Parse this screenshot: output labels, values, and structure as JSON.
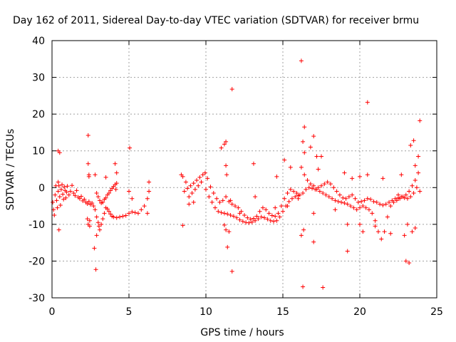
{
  "chart_data": {
    "type": "scatter",
    "title": "Day 162 of 2011, Sidereal Day-to-day VTEC variation (SDTVAR) for receiver brmu",
    "xlabel": "GPS time / hours",
    "ylabel": "SDTVAR / TECUs",
    "xlim": [
      0,
      25
    ],
    "ylim": [
      -30,
      40
    ],
    "xticks": [
      0,
      5,
      10,
      15,
      20,
      25
    ],
    "yticks": [
      -30,
      -20,
      -10,
      0,
      10,
      20,
      30,
      40
    ],
    "grid": true,
    "marker": "+",
    "color": "#ff0000",
    "series": [
      {
        "name": "SDTVAR",
        "points": [
          [
            0.05,
            -4.0
          ],
          [
            0.1,
            -6.0
          ],
          [
            0.15,
            -7.5
          ],
          [
            0.2,
            -2.0
          ],
          [
            0.25,
            0.5
          ],
          [
            0.3,
            -3.5
          ],
          [
            0.35,
            -5.5
          ],
          [
            0.4,
            -1.0
          ],
          [
            0.45,
            0.5
          ],
          [
            0.5,
            -2.5
          ],
          [
            0.55,
            -4.8
          ],
          [
            0.6,
            -0.5
          ],
          [
            0.65,
            0.8
          ],
          [
            0.7,
            -1.8
          ],
          [
            0.75,
            -3.2
          ],
          [
            0.8,
            0.2
          ],
          [
            0.85,
            -0.8
          ],
          [
            0.9,
            -2.8
          ],
          [
            0.95,
            -1.2
          ],
          [
            1.0,
            0.4
          ],
          [
            1.1,
            -2.0
          ],
          [
            1.2,
            -1.0
          ],
          [
            1.3,
            0.6
          ],
          [
            1.4,
            -1.5
          ],
          [
            1.5,
            -2.2
          ],
          [
            1.6,
            -0.8
          ],
          [
            1.7,
            -2.6
          ],
          [
            1.8,
            -3.0
          ],
          [
            1.9,
            -2.4
          ],
          [
            2.0,
            -3.6
          ],
          [
            2.1,
            -3.2
          ],
          [
            2.2,
            -4.0
          ],
          [
            2.3,
            -4.4
          ],
          [
            2.4,
            -3.8
          ],
          [
            2.5,
            -4.6
          ],
          [
            2.6,
            -4.2
          ],
          [
            2.7,
            -5.0
          ],
          [
            2.8,
            -6.0
          ],
          [
            2.9,
            -8.0
          ],
          [
            3.0,
            -9.5
          ],
          [
            3.05,
            -10.5
          ],
          [
            3.1,
            -11.5
          ],
          [
            3.2,
            -10.0
          ],
          [
            3.3,
            -8.5
          ],
          [
            3.4,
            -7.0
          ],
          [
            3.5,
            -5.5
          ],
          [
            3.6,
            -5.8
          ],
          [
            3.7,
            -6.5
          ],
          [
            3.8,
            -7.2
          ],
          [
            3.9,
            -7.8
          ],
          [
            4.0,
            -8.0
          ],
          [
            4.2,
            -8.2
          ],
          [
            4.4,
            -8.0
          ],
          [
            4.6,
            -7.8
          ],
          [
            4.8,
            -7.6
          ],
          [
            5.0,
            -7.0
          ],
          [
            5.2,
            -6.6
          ],
          [
            5.4,
            -6.8
          ],
          [
            5.6,
            -7.0
          ],
          [
            5.8,
            -6.0
          ],
          [
            6.0,
            -5.0
          ],
          [
            6.2,
            -3.0
          ],
          [
            6.3,
            -1.0
          ],
          [
            2.9,
            -1.5
          ],
          [
            3.0,
            -2.5
          ],
          [
            3.1,
            -3.5
          ],
          [
            3.2,
            -4.2
          ],
          [
            3.3,
            -4.0
          ],
          [
            3.4,
            -3.2
          ],
          [
            3.5,
            -2.8
          ],
          [
            3.6,
            -2.0
          ],
          [
            3.7,
            -1.5
          ],
          [
            3.8,
            -0.8
          ],
          [
            3.9,
            -0.2
          ],
          [
            4.0,
            0.3
          ],
          [
            4.1,
            0.8
          ],
          [
            4.2,
            1.2
          ],
          [
            0.4,
            10.0
          ],
          [
            0.5,
            9.5
          ],
          [
            0.45,
            -11.5
          ],
          [
            0.4,
            1.5
          ],
          [
            2.35,
            14.2
          ],
          [
            2.35,
            6.5
          ],
          [
            2.4,
            3.5
          ],
          [
            2.4,
            3.0
          ],
          [
            2.45,
            -9.0
          ],
          [
            2.45,
            -10.5
          ],
          [
            2.3,
            -8.5
          ],
          [
            2.35,
            -10.0
          ],
          [
            2.75,
            -16.5
          ],
          [
            2.85,
            -22.3
          ],
          [
            2.8,
            3.5
          ],
          [
            2.9,
            -13.0
          ],
          [
            3.5,
            2.8
          ],
          [
            4.1,
            6.5
          ],
          [
            4.15,
            -0.5
          ],
          [
            4.2,
            4.0
          ],
          [
            5.05,
            10.8
          ],
          [
            5.0,
            -1.0
          ],
          [
            5.2,
            -3.0
          ],
          [
            6.2,
            -7.0
          ],
          [
            6.3,
            1.5
          ],
          [
            8.4,
            3.5
          ],
          [
            8.5,
            -10.3
          ],
          [
            8.6,
            -1.0
          ],
          [
            8.8,
            -0.2
          ],
          [
            9.0,
            0.5
          ],
          [
            9.2,
            1.2
          ],
          [
            9.4,
            2.0
          ],
          [
            9.6,
            2.8
          ],
          [
            9.8,
            3.5
          ],
          [
            9.95,
            4.0
          ],
          [
            10.1,
            2.5
          ],
          [
            10.3,
            0.2
          ],
          [
            10.5,
            -1.5
          ],
          [
            10.7,
            -3.0
          ],
          [
            10.9,
            -4.0
          ],
          [
            11.1,
            -3.5
          ],
          [
            11.3,
            -2.5
          ],
          [
            11.5,
            -3.8
          ],
          [
            11.7,
            -4.5
          ],
          [
            11.9,
            -5.0
          ],
          [
            12.1,
            -5.5
          ],
          [
            12.3,
            -6.5
          ],
          [
            12.5,
            -7.5
          ],
          [
            12.7,
            -8.2
          ],
          [
            12.9,
            -8.6
          ],
          [
            13.1,
            -8.4
          ],
          [
            13.3,
            -7.8
          ],
          [
            13.5,
            -6.5
          ],
          [
            13.7,
            -5.5
          ],
          [
            13.9,
            -6.0
          ],
          [
            14.1,
            -7.0
          ],
          [
            14.3,
            -7.6
          ],
          [
            14.5,
            -7.8
          ],
          [
            14.7,
            -7.0
          ],
          [
            14.9,
            -5.0
          ],
          [
            15.1,
            -3.0
          ],
          [
            15.3,
            -1.5
          ],
          [
            15.5,
            -0.5
          ],
          [
            15.7,
            -1.0
          ],
          [
            15.9,
            -1.5
          ],
          [
            16.1,
            -2.0
          ],
          [
            8.5,
            3.0
          ],
          [
            8.7,
            1.5
          ],
          [
            9.1,
            -1.5
          ],
          [
            9.3,
            -0.5
          ],
          [
            9.5,
            0.5
          ],
          [
            9.7,
            1.5
          ],
          [
            10.0,
            -0.5
          ],
          [
            10.2,
            -2.5
          ],
          [
            10.4,
            -4.0
          ],
          [
            10.6,
            -5.5
          ],
          [
            10.8,
            -6.5
          ],
          [
            11.0,
            -6.8
          ],
          [
            11.2,
            -7.0
          ],
          [
            11.4,
            -7.2
          ],
          [
            11.6,
            -7.5
          ],
          [
            11.8,
            -7.8
          ],
          [
            12.0,
            -8.2
          ],
          [
            12.2,
            -8.8
          ],
          [
            12.4,
            -9.2
          ],
          [
            12.6,
            -9.5
          ],
          [
            12.8,
            -9.6
          ],
          [
            13.0,
            -9.4
          ],
          [
            13.2,
            -9.0
          ],
          [
            13.4,
            -8.5
          ],
          [
            13.6,
            -8.0
          ],
          [
            13.8,
            -8.2
          ],
          [
            14.0,
            -8.6
          ],
          [
            14.2,
            -9.0
          ],
          [
            14.4,
            -9.2
          ],
          [
            14.6,
            -9.0
          ],
          [
            14.8,
            -8.0
          ],
          [
            15.0,
            -6.5
          ],
          [
            15.2,
            -5.0
          ],
          [
            15.4,
            -3.8
          ],
          [
            15.6,
            -3.0
          ],
          [
            15.8,
            -2.5
          ],
          [
            16.0,
            -2.2
          ],
          [
            8.9,
            -2.5
          ],
          [
            8.9,
            -4.5
          ],
          [
            9.2,
            -4.0
          ],
          [
            11.0,
            10.8
          ],
          [
            11.2,
            11.8
          ],
          [
            11.3,
            6.0
          ],
          [
            11.35,
            3.5
          ],
          [
            11.2,
            -10.2
          ],
          [
            11.3,
            -11.5
          ],
          [
            11.4,
            -16.2
          ],
          [
            11.5,
            -12.0
          ],
          [
            11.7,
            26.8
          ],
          [
            11.7,
            -22.8
          ],
          [
            11.6,
            -3.5
          ],
          [
            11.3,
            12.5
          ],
          [
            12.2,
            -7.0
          ],
          [
            13.1,
            6.5
          ],
          [
            13.2,
            -2.5
          ],
          [
            14.5,
            -5.5
          ],
          [
            14.6,
            3.0
          ],
          [
            15.1,
            7.5
          ],
          [
            15.3,
            -5.0
          ],
          [
            15.5,
            5.5
          ],
          [
            16.2,
            5.5
          ],
          [
            16.4,
            3.5
          ],
          [
            16.6,
            2.0
          ],
          [
            16.8,
            1.0
          ],
          [
            17.0,
            0.5
          ],
          [
            17.2,
            -0.5
          ],
          [
            17.4,
            -1.0
          ],
          [
            17.6,
            -1.5
          ],
          [
            17.8,
            -2.0
          ],
          [
            18.0,
            -2.5
          ],
          [
            18.2,
            -3.0
          ],
          [
            18.4,
            -3.5
          ],
          [
            18.6,
            -3.8
          ],
          [
            18.8,
            -4.0
          ],
          [
            19.0,
            -4.2
          ],
          [
            19.2,
            -4.5
          ],
          [
            19.4,
            -5.0
          ],
          [
            19.6,
            -5.5
          ],
          [
            19.8,
            -6.0
          ],
          [
            20.0,
            -5.5
          ],
          [
            20.2,
            -5.0
          ],
          [
            20.4,
            -5.5
          ],
          [
            20.6,
            -6.0
          ],
          [
            20.8,
            -7.0
          ],
          [
            21.0,
            -9.0
          ],
          [
            21.2,
            -12.0
          ],
          [
            21.4,
            -14.0
          ],
          [
            21.6,
            -12.0
          ],
          [
            21.8,
            -8.0
          ],
          [
            22.0,
            -5.0
          ],
          [
            22.2,
            -4.0
          ],
          [
            22.4,
            -3.5
          ],
          [
            22.6,
            -3.0
          ],
          [
            22.8,
            -2.5
          ],
          [
            23.0,
            -2.0
          ],
          [
            23.2,
            -1.0
          ],
          [
            23.4,
            0.5
          ],
          [
            23.6,
            2.0
          ],
          [
            23.8,
            4.0
          ],
          [
            16.0,
            -3.0
          ],
          [
            16.3,
            -1.5
          ],
          [
            16.5,
            -0.5
          ],
          [
            16.7,
            0.0
          ],
          [
            16.9,
            -0.2
          ],
          [
            17.1,
            -0.5
          ],
          [
            17.3,
            0.0
          ],
          [
            17.5,
            0.5
          ],
          [
            17.7,
            1.0
          ],
          [
            17.9,
            1.5
          ],
          [
            18.1,
            1.0
          ],
          [
            18.3,
            0.0
          ],
          [
            18.5,
            -1.0
          ],
          [
            18.7,
            -2.0
          ],
          [
            18.9,
            -2.8
          ],
          [
            19.1,
            -3.0
          ],
          [
            19.3,
            -2.5
          ],
          [
            19.5,
            -2.0
          ],
          [
            19.7,
            -3.0
          ],
          [
            19.9,
            -4.0
          ],
          [
            20.1,
            -3.8
          ],
          [
            20.3,
            -3.5
          ],
          [
            20.5,
            -3.0
          ],
          [
            20.7,
            -3.2
          ],
          [
            20.9,
            -3.8
          ],
          [
            21.1,
            -4.0
          ],
          [
            21.3,
            -4.5
          ],
          [
            21.5,
            -4.8
          ],
          [
            21.7,
            -4.5
          ],
          [
            21.9,
            -4.0
          ],
          [
            22.1,
            -3.5
          ],
          [
            22.3,
            -3.0
          ],
          [
            22.5,
            -2.8
          ],
          [
            22.7,
            -2.5
          ],
          [
            22.9,
            -2.8
          ],
          [
            23.1,
            -3.0
          ],
          [
            23.3,
            -2.5
          ],
          [
            23.5,
            -1.5
          ],
          [
            23.7,
            0.0
          ],
          [
            23.9,
            -1.0
          ],
          [
            16.2,
            34.5
          ],
          [
            16.3,
            -27.0
          ],
          [
            16.4,
            16.5
          ],
          [
            16.3,
            12.5
          ],
          [
            16.4,
            9.5
          ],
          [
            16.35,
            -11.5
          ],
          [
            16.2,
            -13.0
          ],
          [
            16.8,
            11.0
          ],
          [
            17.0,
            14.0
          ],
          [
            17.0,
            -14.8
          ],
          [
            17.2,
            8.5
          ],
          [
            17.5,
            8.5
          ],
          [
            17.6,
            -27.2
          ],
          [
            17.3,
            5.0
          ],
          [
            17.0,
            -7.0
          ],
          [
            18.4,
            -6.0
          ],
          [
            19.0,
            4.0
          ],
          [
            19.2,
            -17.3
          ],
          [
            19.2,
            -10.0
          ],
          [
            19.5,
            2.5
          ],
          [
            20.0,
            -10.0
          ],
          [
            20.0,
            3.0
          ],
          [
            20.2,
            -12.0
          ],
          [
            20.5,
            23.2
          ],
          [
            20.5,
            3.5
          ],
          [
            21.0,
            -10.5
          ],
          [
            21.5,
            2.5
          ],
          [
            22.0,
            -12.5
          ],
          [
            22.5,
            -2.0
          ],
          [
            22.7,
            3.5
          ],
          [
            22.9,
            -13.0
          ],
          [
            23.0,
            -20.0
          ],
          [
            23.2,
            -20.5
          ],
          [
            23.3,
            11.5
          ],
          [
            23.5,
            12.8
          ],
          [
            23.6,
            6.0
          ],
          [
            23.9,
            18.2
          ],
          [
            23.8,
            8.5
          ],
          [
            23.4,
            -12.0
          ],
          [
            23.6,
            -11.0
          ],
          [
            23.1,
            -10.0
          ]
        ]
      }
    ]
  }
}
